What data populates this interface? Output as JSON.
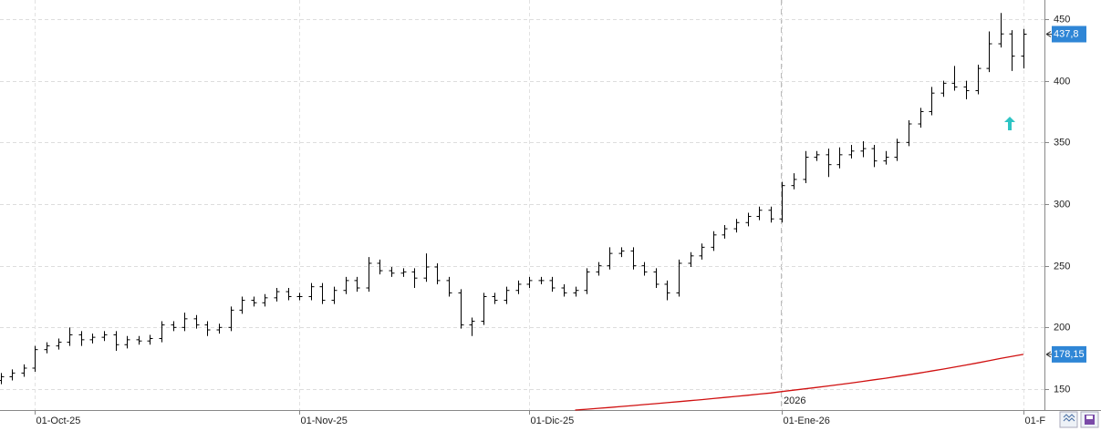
{
  "chart_data": {
    "type": "ohlc",
    "ylim": [
      133,
      465.5
    ],
    "yticks": [
      150,
      200,
      250,
      300,
      350,
      400,
      450
    ],
    "grid": true,
    "year_label": "2026",
    "categories": [
      null,
      null,
      null,
      "01-Oct-25",
      null,
      null,
      null,
      null,
      null,
      null,
      null,
      null,
      null,
      null,
      null,
      null,
      null,
      null,
      null,
      null,
      null,
      null,
      null,
      null,
      null,
      null,
      "01-Nov-25",
      null,
      null,
      null,
      null,
      null,
      null,
      null,
      null,
      null,
      null,
      null,
      null,
      null,
      null,
      null,
      null,
      null,
      null,
      null,
      "01-Dic-25",
      null,
      null,
      null,
      null,
      null,
      null,
      null,
      null,
      null,
      null,
      null,
      null,
      null,
      null,
      null,
      null,
      null,
      null,
      null,
      null,
      null,
      "01-Ene-26",
      null,
      null,
      null,
      null,
      null,
      null,
      null,
      null,
      null,
      null,
      null,
      null,
      null,
      null,
      null,
      null,
      null,
      null,
      null,
      null,
      "01-F"
    ],
    "series": [
      {
        "color": "#000000",
        "open": [
          157,
          160,
          163,
          167,
          182,
          185,
          188,
          194,
          190,
          192,
          194,
          186,
          190,
          189,
          191,
          202,
          200,
          207,
          202,
          198,
          200,
          214,
          222,
          220,
          224,
          229,
          225,
          225,
          233,
          222,
          230,
          238,
          232,
          252,
          246,
          244,
          245,
          240,
          249,
          238,
          228,
          202,
          205,
          225,
          222,
          230,
          235,
          238,
          238,
          232,
          228,
          230,
          245,
          250,
          260,
          262,
          250,
          245,
          235,
          228,
          252,
          258,
          265,
          275,
          280,
          285,
          290,
          295,
          288,
          315,
          320,
          338,
          340,
          332,
          340,
          343,
          345,
          335,
          338,
          350,
          365,
          375,
          390,
          398,
          395,
          392,
          410,
          430,
          438,
          420
        ],
        "high": [
          163,
          166,
          170,
          185,
          188,
          191,
          200,
          197,
          195,
          197,
          197,
          193,
          193,
          194,
          205,
          205,
          212,
          210,
          205,
          203,
          217,
          225,
          225,
          227,
          232,
          232,
          228,
          236,
          236,
          233,
          241,
          241,
          257,
          255,
          249,
          248,
          248,
          260,
          252,
          241,
          231,
          208,
          228,
          228,
          233,
          238,
          241,
          241,
          241,
          235,
          233,
          248,
          253,
          265,
          265,
          265,
          253,
          248,
          238,
          255,
          261,
          268,
          278,
          283,
          288,
          293,
          298,
          298,
          318,
          325,
          343,
          343,
          345,
          346,
          348,
          351,
          348,
          343,
          353,
          368,
          378,
          395,
          400,
          412,
          400,
          413,
          440,
          455,
          441,
          442
        ],
        "low": [
          154,
          157,
          160,
          164,
          179,
          182,
          185,
          185,
          187,
          189,
          181,
          183,
          186,
          186,
          188,
          197,
          197,
          199,
          193,
          195,
          197,
          211,
          217,
          217,
          221,
          222,
          222,
          222,
          219,
          219,
          227,
          229,
          229,
          243,
          241,
          241,
          232,
          237,
          235,
          225,
          199,
          193,
          202,
          219,
          219,
          227,
          232,
          235,
          229,
          225,
          225,
          227,
          242,
          247,
          257,
          247,
          242,
          232,
          222,
          225,
          249,
          255,
          262,
          272,
          277,
          282,
          287,
          285,
          285,
          312,
          317,
          335,
          322,
          329,
          337,
          338,
          330,
          332,
          335,
          347,
          362,
          372,
          387,
          392,
          385,
          389,
          407,
          427,
          408,
          410
        ],
        "close": [
          160,
          163,
          167,
          182,
          185,
          188,
          194,
          190,
          192,
          194,
          186,
          190,
          189,
          191,
          202,
          200,
          207,
          202,
          198,
          200,
          214,
          222,
          220,
          224,
          229,
          225,
          225,
          233,
          222,
          230,
          238,
          232,
          252,
          246,
          244,
          245,
          240,
          249,
          238,
          228,
          202,
          205,
          225,
          222,
          230,
          235,
          238,
          238,
          232,
          228,
          230,
          245,
          250,
          260,
          262,
          250,
          245,
          235,
          228,
          252,
          258,
          265,
          275,
          280,
          285,
          290,
          295,
          288,
          315,
          320,
          338,
          340,
          332,
          340,
          343,
          345,
          335,
          338,
          350,
          365,
          375,
          390,
          398,
          395,
          392,
          410,
          430,
          438,
          420,
          437.8
        ]
      },
      {
        "type": "line",
        "color": "#d01010",
        "values": [
          null,
          null,
          null,
          null,
          null,
          null,
          null,
          null,
          null,
          null,
          null,
          null,
          null,
          null,
          null,
          null,
          null,
          null,
          null,
          null,
          null,
          null,
          null,
          null,
          null,
          null,
          null,
          null,
          null,
          null,
          null,
          null,
          null,
          null,
          null,
          null,
          null,
          null,
          null,
          null,
          null,
          null,
          null,
          null,
          null,
          null,
          null,
          null,
          null,
          null,
          133,
          133.7,
          134.4,
          135.1,
          135.9,
          136.6,
          137.4,
          138.2,
          139,
          139.8,
          140.6,
          141.4,
          142.3,
          143.2,
          144.1,
          145,
          145.9,
          146.8,
          148,
          149.1,
          150.2,
          151.3,
          152.5,
          153.7,
          154.9,
          156.2,
          157.5,
          158.8,
          160.2,
          161.6,
          163.1,
          164.6,
          166.2,
          167.8,
          169.5,
          171.2,
          173,
          174.8,
          176.5,
          178.15
        ]
      }
    ],
    "price_tags": [
      {
        "value": 437.8,
        "label": "437,8",
        "color": "#2f86d6"
      },
      {
        "value": 178.15,
        "label": "178,15",
        "color": "#2f86d6"
      }
    ]
  }
}
